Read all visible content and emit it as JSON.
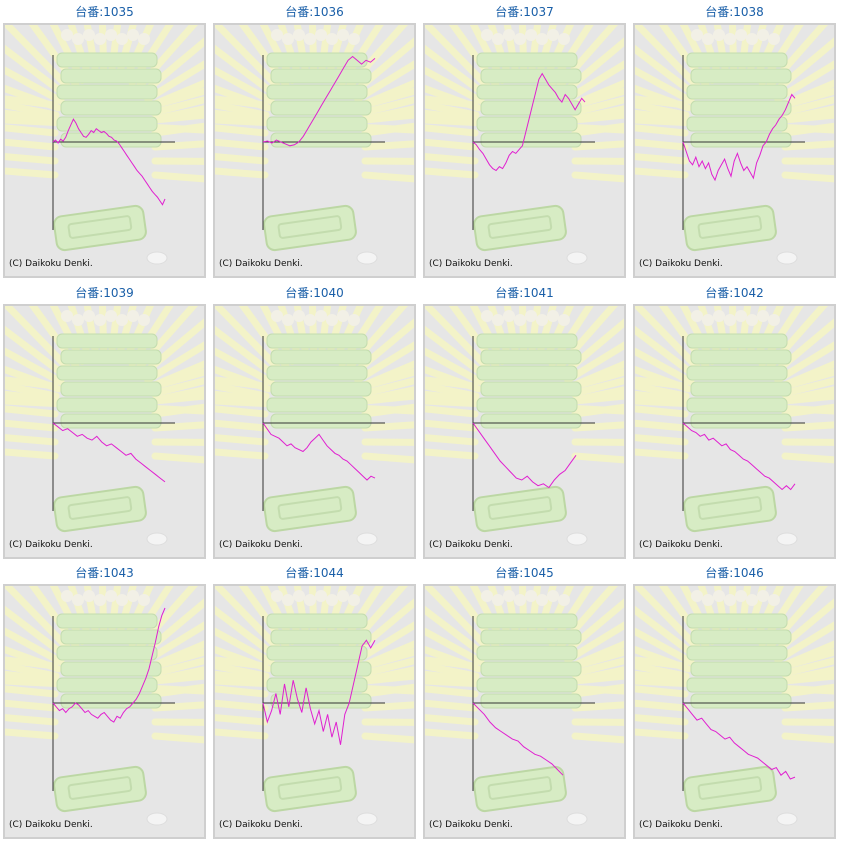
{
  "copyright": "(C) Daikoku Denki.",
  "series_color": "#e020d0",
  "chart_data": [
    {
      "type": "line",
      "title": "台番:1035",
      "values": [
        0,
        2,
        -1,
        3,
        1,
        5,
        12,
        18,
        24,
        20,
        14,
        10,
        6,
        5,
        8,
        12,
        10,
        14,
        12,
        10,
        11,
        9,
        6,
        5,
        2,
        1,
        -2,
        -6,
        -10,
        -14,
        -18,
        -22,
        -26,
        -30,
        -33,
        -36,
        -40,
        -44,
        -48,
        -52,
        -55,
        -58,
        -62,
        -66,
        -60
      ]
    },
    {
      "type": "line",
      "title": "台番:1036",
      "values": [
        0,
        1,
        -1,
        2,
        0,
        -2,
        -4,
        -3,
        0,
        6,
        14,
        22,
        30,
        38,
        46,
        54,
        62,
        70,
        78,
        86,
        90,
        86,
        82,
        86,
        84,
        88
      ]
    },
    {
      "type": "line",
      "title": "台番:1037",
      "values": [
        0,
        -3,
        -8,
        -12,
        -18,
        -24,
        -28,
        -30,
        -26,
        -28,
        -22,
        -14,
        -10,
        -12,
        -8,
        -4,
        10,
        24,
        38,
        52,
        66,
        72,
        66,
        60,
        56,
        52,
        46,
        42,
        50,
        46,
        40,
        34,
        40,
        46,
        42
      ]
    },
    {
      "type": "line",
      "title": "台番:1038",
      "values": [
        0,
        -10,
        -20,
        -24,
        -16,
        -26,
        -20,
        -28,
        -22,
        -34,
        -40,
        -30,
        -24,
        -18,
        -28,
        -36,
        -20,
        -12,
        -22,
        -30,
        -26,
        -32,
        -38,
        -22,
        -14,
        -4,
        0,
        8,
        14,
        18,
        24,
        28,
        34,
        42,
        50,
        46
      ]
    },
    {
      "type": "line",
      "title": "台番:1039",
      "values": [
        0,
        -4,
        -8,
        -6,
        -10,
        -14,
        -12,
        -16,
        -18,
        -14,
        -20,
        -24,
        -22,
        -26,
        -30,
        -34,
        -32,
        -38,
        -42,
        -46,
        -50,
        -54,
        -58,
        -62
      ]
    },
    {
      "type": "line",
      "title": "台番:1040",
      "values": [
        0,
        -6,
        -12,
        -14,
        -16,
        -20,
        -24,
        -22,
        -26,
        -28,
        -30,
        -26,
        -20,
        -16,
        -12,
        -18,
        -24,
        -28,
        -32,
        -34,
        -38,
        -40,
        -44,
        -48,
        -52,
        -56,
        -60,
        -56,
        -58
      ]
    },
    {
      "type": "line",
      "title": "台番:1041",
      "values": [
        0,
        -8,
        -16,
        -24,
        -32,
        -40,
        -46,
        -52,
        -58,
        -60,
        -56,
        -62,
        -66,
        -64,
        -68,
        -60,
        -54,
        -50,
        -42,
        -34
      ]
    },
    {
      "type": "line",
      "title": "台番:1042",
      "values": [
        0,
        -4,
        -8,
        -10,
        -14,
        -12,
        -18,
        -16,
        -20,
        -24,
        -22,
        -28,
        -30,
        -34,
        -38,
        -40,
        -44,
        -48,
        -52,
        -56,
        -58,
        -62,
        -66,
        -70,
        -66,
        -70,
        -64
      ]
    },
    {
      "type": "line",
      "title": "台番:1043",
      "values": [
        0,
        -4,
        -8,
        -6,
        -10,
        -6,
        -4,
        0,
        -2,
        -6,
        -10,
        -8,
        -12,
        -14,
        -16,
        -12,
        -10,
        -14,
        -18,
        -20,
        -14,
        -16,
        -10,
        -6,
        -4,
        0,
        4,
        10,
        18,
        26,
        36,
        50,
        64,
        80,
        92,
        100
      ]
    },
    {
      "type": "line",
      "title": "台番:1044",
      "values": [
        0,
        -20,
        -8,
        10,
        -12,
        20,
        -4,
        24,
        4,
        -10,
        16,
        -6,
        -22,
        -8,
        -30,
        -12,
        -36,
        -20,
        -44,
        -12,
        0,
        20,
        40,
        60,
        66,
        58,
        66
      ]
    },
    {
      "type": "line",
      "title": "台番:1045",
      "values": [
        0,
        -6,
        -12,
        -20,
        -26,
        -30,
        -34,
        -38,
        -40,
        -46,
        -50,
        -54,
        -56,
        -60,
        -64,
        -70,
        -76
      ]
    },
    {
      "type": "line",
      "title": "台番:1046",
      "values": [
        0,
        -6,
        -12,
        -18,
        -16,
        -22,
        -28,
        -30,
        -34,
        -38,
        -36,
        -42,
        -46,
        -50,
        -54,
        -56,
        -58,
        -62,
        -66,
        -70,
        -68,
        -76,
        -72,
        -80,
        -78
      ]
    }
  ]
}
